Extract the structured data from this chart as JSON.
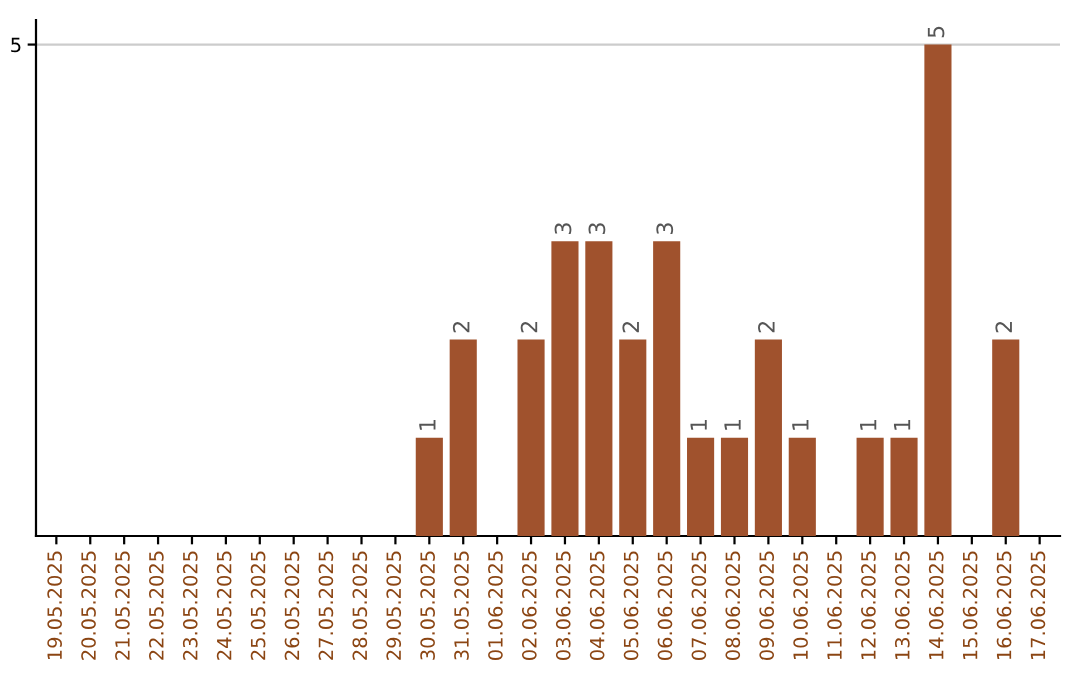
{
  "chart_data": {
    "type": "bar",
    "categories": [
      "19.05.2025",
      "20.05.2025",
      "21.05.2025",
      "22.05.2025",
      "23.05.2025",
      "24.05.2025",
      "25.05.2025",
      "26.05.2025",
      "27.05.2025",
      "28.05.2025",
      "29.05.2025",
      "30.05.2025",
      "31.05.2025",
      "01.06.2025",
      "02.06.2025",
      "03.06.2025",
      "04.06.2025",
      "05.06.2025",
      "06.06.2025",
      "07.06.2025",
      "08.06.2025",
      "09.06.2025",
      "10.06.2025",
      "11.06.2025",
      "12.06.2025",
      "13.06.2025",
      "14.06.2025",
      "15.06.2025",
      "16.06.2025",
      "17.06.2025"
    ],
    "values": [
      0,
      0,
      0,
      0,
      0,
      0,
      0,
      0,
      0,
      0,
      0,
      1,
      2,
      0,
      2,
      3,
      3,
      2,
      3,
      1,
      1,
      2,
      1,
      0,
      1,
      1,
      5,
      0,
      2,
      0
    ],
    "value_labels": [
      null,
      null,
      null,
      null,
      null,
      null,
      null,
      null,
      null,
      null,
      null,
      "1",
      "2",
      null,
      "2",
      "3",
      "3",
      "2",
      "3",
      "1",
      "1",
      "2",
      "1",
      null,
      "1",
      "1",
      "5",
      null,
      "2",
      null
    ],
    "color": "#a0522d",
    "ylim": [
      0,
      5.25
    ],
    "yticks": [
      5
    ],
    "grid": "y"
  }
}
